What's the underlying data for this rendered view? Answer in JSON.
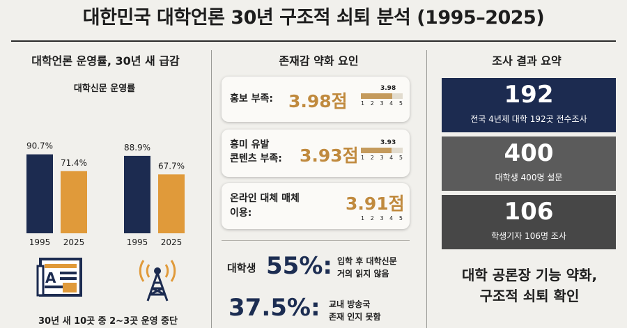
{
  "page": {
    "title": "대한민국 대학언론 30년 구조적 쇠퇴 분석 (1995–2025)"
  },
  "left": {
    "heading": "대학언론 운영률, 30년 새 급감",
    "subheading": "대학신문 운영률",
    "bottom_note": "30년 새 10곳 중 2~3곳 운영 중단"
  },
  "chart_data": [
    {
      "type": "bar",
      "title": "대학신문 운영률",
      "categories": [
        "1995",
        "2025"
      ],
      "values": [
        90.7,
        71.4
      ],
      "value_labels": [
        "90.7%",
        "71.4%"
      ],
      "colors": [
        "#1c2b50",
        "#e09a3a"
      ],
      "ylim": [
        0,
        100
      ]
    },
    {
      "type": "bar",
      "title": "",
      "categories": [
        "1995",
        "2025"
      ],
      "values": [
        88.9,
        67.7
      ],
      "value_labels": [
        "88.9%",
        "67.7%"
      ],
      "colors": [
        "#1c2b50",
        "#e09a3a"
      ],
      "ylim": [
        0,
        100
      ]
    }
  ],
  "middle": {
    "heading": "존재감 약화 요인",
    "factors": [
      {
        "label": "홍보 부족:",
        "value_text": "3.98점",
        "score": 3.98,
        "score_text": "3.98"
      },
      {
        "label_line1": "흥미 유발",
        "label_line2": "콘텐츠 부족:",
        "value_text": "3.93점",
        "score": 3.93,
        "score_text": "3.93"
      },
      {
        "label_line1": "온라인 대체 매체",
        "label_line2": "이용:",
        "value_text": "3.91점",
        "score": 3.91
      }
    ],
    "scale_ticks": [
      "1",
      "2",
      "3",
      "4",
      "5"
    ],
    "stats": [
      {
        "prefix": "대학생",
        "big": "55%:",
        "desc_line1": "입학 후 대학신문",
        "desc_line2": "거의 읽지 않음"
      },
      {
        "big": "37.5%:",
        "desc_line1": "교내 방송국",
        "desc_line2": "존재 인지 못함"
      }
    ]
  },
  "right": {
    "heading": "조사 결과 요약",
    "boxes": [
      {
        "number": "192",
        "text": "전국 4년제 대학 192곳 전수조사",
        "color": "#1c2b50"
      },
      {
        "number": "400",
        "text": "대학생 400명 설문",
        "color": "#5b5b5b"
      },
      {
        "number": "106",
        "text": "학생기자 106명 조사",
        "color": "#474747"
      }
    ],
    "conclusion_line1": "대학 공론장 기능 약화,",
    "conclusion_line2": "구조적 쇠퇴 확인"
  }
}
